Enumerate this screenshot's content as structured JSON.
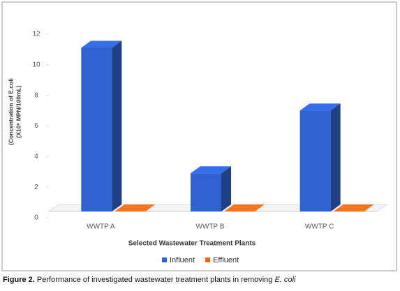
{
  "chart_data": {
    "type": "bar3d",
    "y_label": [
      "(Concentration of E.coli",
      "(X10⁶ MPN/100mL)"
    ],
    "x_label": "Selected Wastewater Treatment Plants",
    "categories": [
      "WWTP A",
      "WWTP B",
      "WWTP  C"
    ],
    "series": [
      {
        "name": "Influent",
        "color": "#2f62d0",
        "values": [
          10.7,
          2.5,
          6.6
        ]
      },
      {
        "name": "Effluent",
        "color": "#e2671b",
        "values": [
          0,
          0,
          0
        ]
      }
    ],
    "ylim": [
      0,
      12
    ],
    "yticks": [
      0,
      2,
      4,
      6,
      8,
      10,
      12
    ],
    "legend": "bottom"
  },
  "figure_caption": {
    "label": "Figure 2.",
    "text": "Performance of investigated wastewater treatment plants in removing",
    "species": "E. coli"
  }
}
